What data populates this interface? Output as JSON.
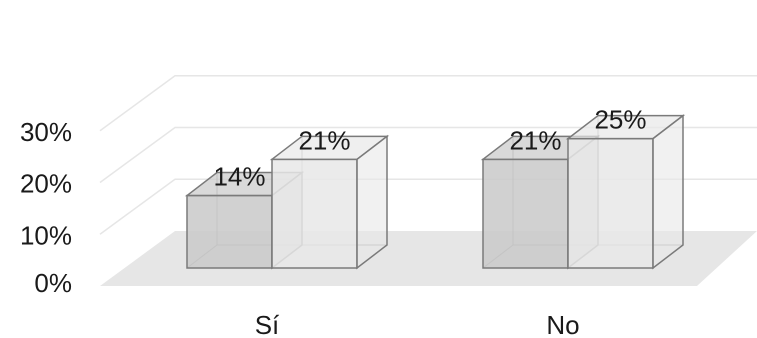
{
  "chart_data": {
    "type": "bar",
    "categories": [
      "Sí",
      "No"
    ],
    "series": [
      {
        "values": [
          14,
          21
        ],
        "value_labels": [
          "14%",
          "21%"
        ],
        "color": "#c9c9c9"
      },
      {
        "values": [
          21,
          25
        ],
        "value_labels": [
          "21%",
          "25%"
        ],
        "color": "#e8e8e8"
      }
    ],
    "y_ticks": [
      0,
      10,
      20,
      30
    ],
    "y_tick_labels": [
      "0%",
      "10%",
      "20%",
      "30%"
    ],
    "ylim": [
      0,
      40
    ],
    "grid": true,
    "legend": "none",
    "style": "3d-clustered-column",
    "colors": {
      "floor": "#e6e6e6",
      "grid": "#e6e6e6",
      "edge": "#7a7a7a",
      "text": "#1a1a1a"
    }
  }
}
